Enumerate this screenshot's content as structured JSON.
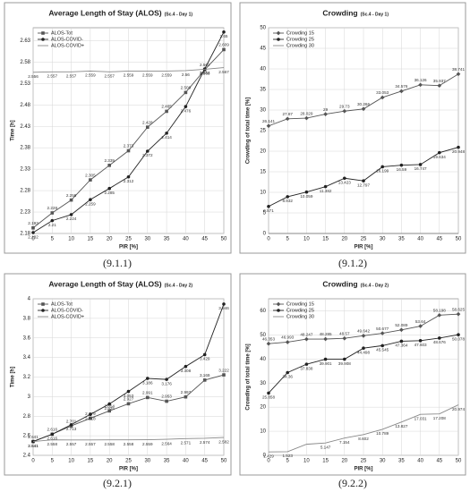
{
  "captions": [
    "(9.1.1)",
    "(9.1.2)",
    "(9.2.1)",
    "(9.2.2)"
  ],
  "chart_data": [
    {
      "type": "line",
      "title": "Average Length of Stay (ALOS)",
      "subtitle": "(Sc.4 - Day 1)",
      "xlabel": "PIR [%]",
      "ylabel": "Time [h]",
      "x": [
        0,
        5,
        10,
        15,
        20,
        25,
        30,
        35,
        40,
        45,
        50
      ],
      "xlim": [
        0,
        50
      ],
      "xticks": [
        0,
        5,
        10,
        15,
        20,
        25,
        30,
        35,
        40,
        45,
        50
      ],
      "ylim": [
        2.18,
        2.66
      ],
      "yticks": [
        2.18,
        2.23,
        2.28,
        2.33,
        2.38,
        2.43,
        2.48,
        2.53,
        2.58,
        2.63
      ],
      "grid": true,
      "legend": "upper left",
      "series": [
        {
          "name": "ALOS-Tot",
          "color": "#555555",
          "marker": "square",
          "values": [
            2.193,
            2.228,
            2.258,
            2.305,
            2.339,
            2.373,
            2.428,
            2.465,
            2.509,
            2.562,
            2.609
          ]
        },
        {
          "name": "ALOS-COVID-",
          "color": "#222222",
          "marker": "circle",
          "values": [
            2.182,
            2.21,
            2.224,
            2.259,
            2.285,
            2.312,
            2.372,
            2.414,
            2.476,
            2.564,
            2.65
          ]
        },
        {
          "name": "ALOS-COVID+",
          "color": "#888888",
          "marker": "none",
          "values": [
            2.556,
            2.557,
            2.557,
            2.559,
            2.557,
            2.559,
            2.559,
            2.559,
            2.56,
            2.563,
            2.567
          ]
        }
      ]
    },
    {
      "type": "line",
      "title": "Crowding",
      "subtitle": "(Sc.4 - Day 1)",
      "xlabel": "PIR [%]",
      "ylabel": "Crowding of total time [%]",
      "x": [
        0,
        5,
        10,
        15,
        20,
        25,
        30,
        35,
        40,
        45,
        50
      ],
      "xlim": [
        0,
        50
      ],
      "xticks": [
        0,
        5,
        10,
        15,
        20,
        25,
        30,
        35,
        40,
        45,
        50
      ],
      "ylim": [
        0,
        50
      ],
      "yticks": [
        0,
        5,
        10,
        15,
        20,
        25,
        30,
        35,
        40,
        45,
        50
      ],
      "grid": true,
      "legend": "upper left",
      "series": [
        {
          "name": "Crowding 15",
          "color": "#555555",
          "marker": "diamond",
          "values": [
            26.141,
            27.87,
            28.029,
            29,
            29.73,
            30.266,
            33.053,
            34.576,
            36.126,
            35.937,
            38.741
          ]
        },
        {
          "name": "Crowding 25",
          "color": "#222222",
          "marker": "circle",
          "values": [
            6.571,
            8.932,
            10.059,
            11.382,
            13.423,
            12.797,
            16.199,
            16.59,
            16.747,
            19.634,
            20.948
          ]
        },
        {
          "name": "Crowding 30",
          "color": "#888888",
          "marker": "none",
          "values": [
            0,
            0,
            0,
            0,
            0,
            0,
            0,
            0,
            0,
            0,
            0
          ],
          "value_labels": [
            null,
            null,
            null,
            null,
            null,
            null,
            null,
            null,
            null,
            null,
            null
          ]
        }
      ]
    },
    {
      "type": "line",
      "title": "Average Length of Stay (ALOS)",
      "subtitle": "(Sc.4 - Day 2)",
      "xlabel": "PIR [%]",
      "ylabel": "Time [h]",
      "x": [
        0,
        5,
        10,
        15,
        20,
        25,
        30,
        35,
        40,
        45,
        50
      ],
      "xlim": [
        0,
        50
      ],
      "xticks": [
        0,
        5,
        10,
        15,
        20,
        25,
        30,
        35,
        40,
        45,
        50
      ],
      "ylim": [
        2.4,
        4
      ],
      "yticks": [
        2.4,
        2.6,
        2.8,
        3,
        3.2,
        3.4,
        3.6,
        3.8,
        4
      ],
      "grid": true,
      "legend": "upper left",
      "series": [
        {
          "name": "ALOS-Tot",
          "color": "#555555",
          "marker": "square",
          "values": [
            2.541,
            2.616,
            2.701,
            2.779,
            2.854,
            2.927,
            2.991,
            2.953,
            2.997,
            3.169,
            3.222
          ]
        },
        {
          "name": "ALOS-COVID-",
          "color": "#222222",
          "marker": "circle",
          "values": [
            2.541,
            2.616,
            2.713,
            2.818,
            2.925,
            3.053,
            3.186,
            3.176,
            3.308,
            3.429,
            3.946
          ]
        },
        {
          "name": "ALOS-COVID+",
          "color": "#888888",
          "marker": "none",
          "values": [
            2.541,
            2.558,
            2.557,
            2.557,
            2.558,
            2.558,
            2.559,
            2.564,
            2.571,
            2.574,
            2.582
          ]
        }
      ]
    },
    {
      "type": "line",
      "title": "Crowding",
      "subtitle": "(Sc.4 - Day 2)",
      "xlabel": "PIR [%]",
      "ylabel": "Crowding of total time [%]",
      "x": [
        0,
        5,
        10,
        15,
        20,
        25,
        30,
        35,
        40,
        45,
        50
      ],
      "xlim": [
        0,
        50
      ],
      "xticks": [
        0,
        5,
        10,
        15,
        20,
        25,
        30,
        35,
        40,
        45,
        50
      ],
      "ylim": [
        0,
        65
      ],
      "yticks": [
        0,
        10,
        20,
        30,
        40,
        50,
        60
      ],
      "grid": true,
      "legend": "upper left",
      "series": [
        {
          "name": "Crowding 15",
          "color": "#555555",
          "marker": "diamond",
          "values": [
            46.353,
            46.993,
            48.247,
            48.285,
            48.57,
            49.642,
            50.677,
            52.089,
            53.64,
            58.198,
            58.625
          ]
        },
        {
          "name": "Crowding 25",
          "color": "#222222",
          "marker": "circle",
          "values": [
            25.858,
            34.36,
            37.838,
            39.901,
            39.908,
            44.498,
            45.545,
            47.364,
            47.603,
            48.676,
            50.078
          ]
        },
        {
          "name": "Crowding 30",
          "color": "#888888",
          "marker": "none",
          "values": [
            1.429,
            1.523,
            4.6,
            5.147,
            7.154,
            8.602,
            10.789,
            13.827,
            17.031,
            17.208,
            20.974
          ],
          "value_labels": [
            "1.429",
            "1.523",
            null,
            "5.147",
            "7.154",
            "8.602",
            "10.789",
            "13.827",
            "17.031",
            "17.208",
            "20.974"
          ]
        }
      ]
    }
  ]
}
